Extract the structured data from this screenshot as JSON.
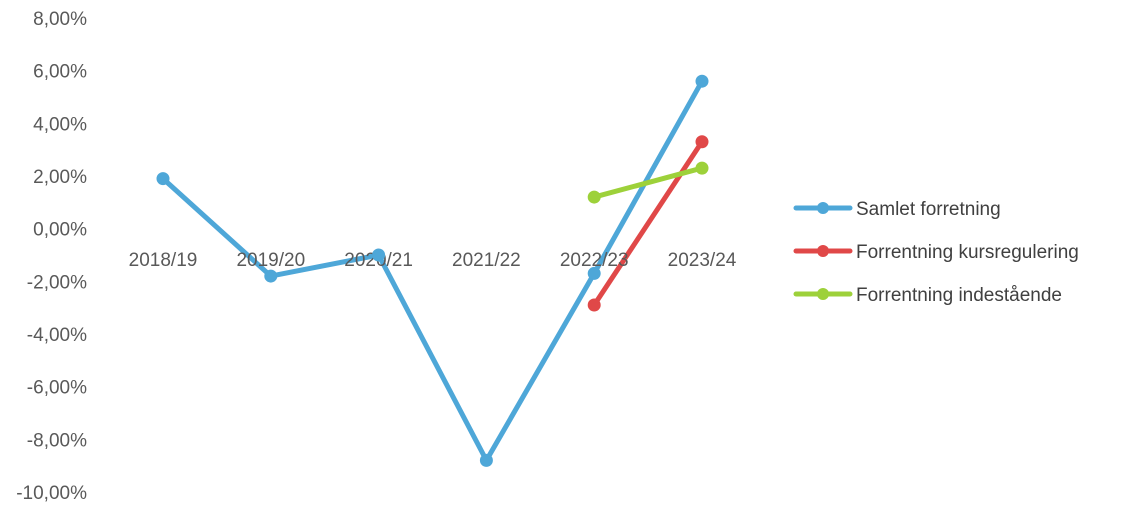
{
  "chart_data": {
    "type": "line",
    "categories": [
      "2018/19",
      "2019/20",
      "2020/21",
      "2021/22",
      "2022/23",
      "2023/24"
    ],
    "y_tick_labels": [
      "8,00%",
      "6,00%",
      "4,00%",
      "2,00%",
      "0,00%",
      "-2,00%",
      "-4,00%",
      "-6,00%",
      "-8,00%",
      "-10,00%"
    ],
    "ylim": [
      -10,
      8
    ],
    "y_unit": "%",
    "grid": false,
    "legend_position": "right",
    "series": [
      {
        "name": "Samlet forretning",
        "color": "#4ea7d8",
        "values": [
          1.9,
          -1.8,
          -1.0,
          -8.8,
          -1.7,
          5.6
        ]
      },
      {
        "name": "Forrentning kursregulering",
        "color": "#e04848",
        "values": [
          null,
          null,
          null,
          null,
          -2.9,
          3.3
        ]
      },
      {
        "name": "Forrentning indestående",
        "color": "#9dd13a",
        "values": [
          null,
          null,
          null,
          null,
          1.2,
          2.3
        ]
      }
    ]
  }
}
